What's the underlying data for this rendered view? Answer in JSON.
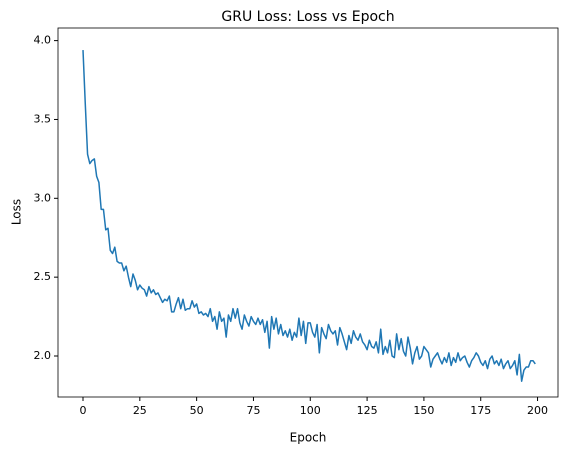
{
  "chart_data": {
    "type": "line",
    "title": "GRU Loss: Loss vs Epoch",
    "x_label": "Epoch",
    "y_label": "Loss",
    "x": [
      0,
      1,
      2,
      3,
      4,
      5,
      6,
      7,
      8,
      9,
      10,
      11,
      12,
      13,
      14,
      15,
      16,
      17,
      18,
      19,
      20,
      21,
      22,
      23,
      24,
      25,
      26,
      27,
      28,
      29,
      30,
      31,
      32,
      33,
      34,
      35,
      36,
      37,
      38,
      39,
      40,
      41,
      42,
      43,
      44,
      45,
      46,
      47,
      48,
      49,
      50,
      51,
      52,
      53,
      54,
      55,
      56,
      57,
      58,
      59,
      60,
      61,
      62,
      63,
      64,
      65,
      66,
      67,
      68,
      69,
      70,
      71,
      72,
      73,
      74,
      75,
      76,
      77,
      78,
      79,
      80,
      81,
      82,
      83,
      84,
      85,
      86,
      87,
      88,
      89,
      90,
      91,
      92,
      93,
      94,
      95,
      96,
      97,
      98,
      99,
      100,
      101,
      102,
      103,
      104,
      105,
      106,
      107,
      108,
      109,
      110,
      111,
      112,
      113,
      114,
      115,
      116,
      117,
      118,
      119,
      120,
      121,
      122,
      123,
      124,
      125,
      126,
      127,
      128,
      129,
      130,
      131,
      132,
      133,
      134,
      135,
      136,
      137,
      138,
      139,
      140,
      141,
      142,
      143,
      144,
      145,
      146,
      147,
      148,
      149,
      150,
      151,
      152,
      153,
      154,
      155,
      156,
      157,
      158,
      159,
      160,
      161,
      162,
      163,
      164,
      165,
      166,
      167,
      168,
      169,
      170,
      171,
      172,
      173,
      174,
      175,
      176,
      177,
      178,
      179,
      180,
      181,
      182,
      183,
      184,
      185,
      186,
      187,
      188,
      189,
      190,
      191,
      192,
      193,
      194,
      195,
      196,
      197,
      198,
      199
    ],
    "series": [
      {
        "name": "Loss",
        "color": "#1f77b4",
        "values": [
          3.94,
          3.6,
          3.28,
          3.22,
          3.24,
          3.25,
          3.14,
          3.1,
          2.93,
          2.93,
          2.8,
          2.81,
          2.67,
          2.65,
          2.69,
          2.6,
          2.59,
          2.59,
          2.54,
          2.57,
          2.5,
          2.44,
          2.52,
          2.48,
          2.42,
          2.45,
          2.43,
          2.42,
          2.38,
          2.44,
          2.4,
          2.42,
          2.39,
          2.4,
          2.37,
          2.34,
          2.36,
          2.35,
          2.38,
          2.28,
          2.28,
          2.33,
          2.37,
          2.3,
          2.36,
          2.29,
          2.3,
          2.3,
          2.35,
          2.31,
          2.33,
          2.27,
          2.28,
          2.26,
          2.27,
          2.25,
          2.3,
          2.22,
          2.25,
          2.17,
          2.28,
          2.22,
          2.24,
          2.12,
          2.26,
          2.22,
          2.3,
          2.24,
          2.3,
          2.21,
          2.17,
          2.26,
          2.22,
          2.19,
          2.25,
          2.22,
          2.2,
          2.24,
          2.2,
          2.23,
          2.15,
          2.22,
          2.05,
          2.25,
          2.17,
          2.24,
          2.14,
          2.2,
          2.13,
          2.16,
          2.12,
          2.17,
          2.1,
          2.15,
          2.12,
          2.24,
          2.13,
          2.22,
          2.08,
          2.21,
          2.21,
          2.15,
          2.12,
          2.2,
          2.02,
          2.18,
          2.14,
          2.11,
          2.2,
          2.16,
          2.14,
          2.16,
          2.07,
          2.18,
          2.14,
          2.09,
          2.04,
          2.13,
          2.08,
          2.16,
          2.12,
          2.1,
          2.14,
          2.09,
          2.07,
          2.04,
          2.1,
          2.06,
          2.05,
          2.09,
          2.02,
          2.17,
          2.01,
          2.06,
          2.02,
          2.1,
          2.0,
          1.99,
          2.14,
          2.04,
          2.11,
          2.03,
          2.0,
          2.12,
          2.05,
          1.95,
          2.02,
          2.06,
          1.98,
          2.0,
          2.06,
          2.04,
          2.02,
          1.93,
          1.98,
          2.0,
          2.02,
          1.98,
          1.95,
          1.99,
          1.96,
          2.02,
          1.94,
          1.99,
          1.96,
          2.02,
          1.97,
          1.99,
          2.0,
          1.96,
          1.93,
          1.97,
          1.99,
          2.02,
          2.0,
          1.96,
          1.94,
          1.97,
          1.92,
          1.98,
          2.0,
          1.95,
          1.97,
          1.94,
          1.98,
          1.92,
          1.95,
          1.97,
          1.92,
          1.94,
          1.97,
          1.88,
          2.01,
          1.84,
          1.91,
          1.93,
          1.93,
          1.97,
          1.97,
          1.95
        ]
      }
    ],
    "xlim": [
      -11,
      209
    ],
    "ylim": [
      1.74,
      4.08
    ],
    "xticks": [
      0,
      25,
      50,
      75,
      100,
      125,
      150,
      175,
      200
    ],
    "yticks": [
      {
        "value": 2,
        "label": "2.0"
      },
      2.5,
      {
        "value": 3,
        "label": "3.0"
      },
      3.5,
      {
        "value": 4,
        "label": "4.0"
      }
    ],
    "grid": false
  }
}
